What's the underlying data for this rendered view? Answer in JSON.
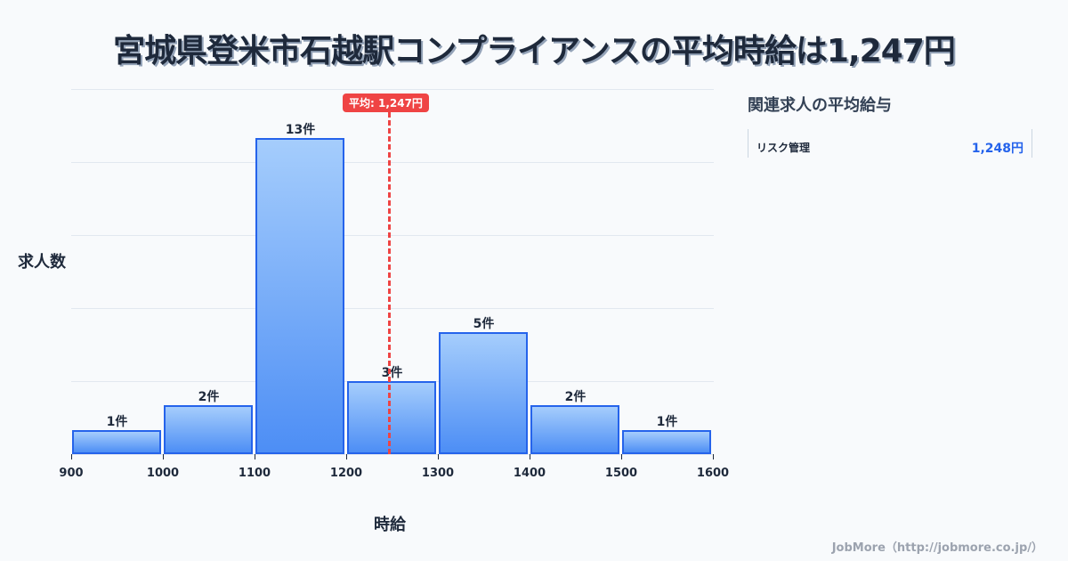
{
  "title": "宮城県登米市石越駅コンプライアンスの平均時給は1,247円",
  "chart_data": {
    "type": "bar",
    "title": "宮城県登米市石越駅コンプライアンスの平均時給は1,247円",
    "xlabel": "時給",
    "ylabel": "求人数",
    "bin_edges": [
      900,
      1000,
      1100,
      1200,
      1300,
      1400,
      1500,
      1600
    ],
    "categories": [
      "900-1000",
      "1000-1100",
      "1100-1200",
      "1200-1300",
      "1300-1400",
      "1400-1500",
      "1500-1600"
    ],
    "values": [
      1,
      2,
      13,
      3,
      5,
      2,
      1
    ],
    "value_labels": [
      "1件",
      "2件",
      "13件",
      "3件",
      "5件",
      "2件",
      "1件"
    ],
    "x_ticks": [
      "900",
      "1000",
      "1100",
      "1200",
      "1300",
      "1400",
      "1500",
      "1600"
    ],
    "average": {
      "value": 1247,
      "label": "平均: 1,247円"
    },
    "ylim": [
      0,
      15
    ],
    "grid": true,
    "colors": {
      "bar": "#60a5fa",
      "bar_border": "#2563eb",
      "average_line": "#ef4444"
    }
  },
  "side_panel": {
    "title": "関連求人の平均給与",
    "items": [
      {
        "name": "リスク管理",
        "value": "1,248円"
      }
    ]
  },
  "footer": "JobMore（http://jobmore.co.jp/）"
}
